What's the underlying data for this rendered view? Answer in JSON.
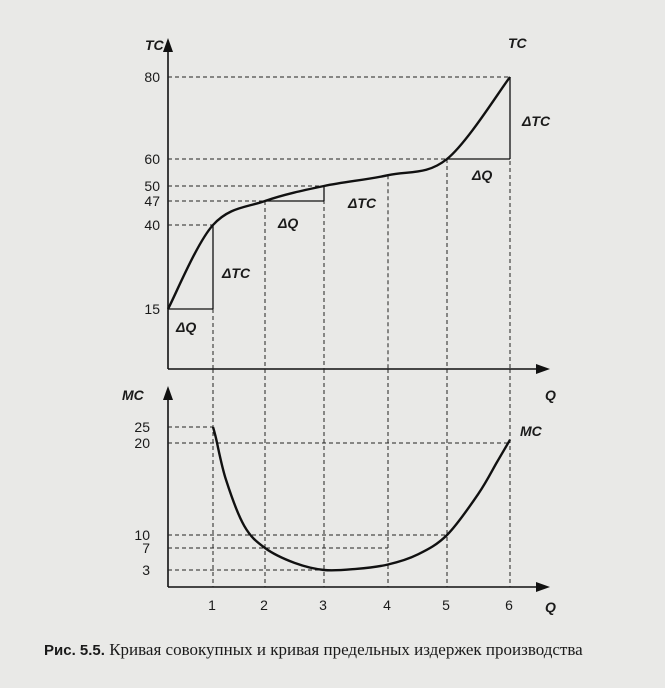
{
  "caption": {
    "label": "Рис. 5.5.",
    "text": "Кривая совокупных и кривая предельных издержек производства"
  },
  "chart_data": [
    {
      "type": "line",
      "xlabel": "Q",
      "ylabel": "TC",
      "curve_label": "TC",
      "yticks": [
        15,
        40,
        47,
        50,
        60,
        80
      ],
      "ylim": [
        0,
        88
      ],
      "xlim": [
        0,
        6.6
      ],
      "guide_x": [
        1,
        2,
        3,
        4,
        5,
        6
      ],
      "x": [
        0,
        1,
        2,
        3,
        4,
        5,
        6
      ],
      "y": [
        15,
        40,
        47,
        50,
        54,
        60,
        80
      ],
      "annotations": [
        {
          "label": "ΔQ"
        },
        {
          "label": "ΔTC"
        },
        {
          "label": "ΔQ"
        },
        {
          "label": "ΔTC"
        },
        {
          "label": "ΔQ"
        },
        {
          "label": "ΔTC"
        }
      ]
    },
    {
      "type": "line",
      "xlabel": "Q",
      "ylabel": "MC",
      "curve_label": "MC",
      "categories": [
        "1",
        "2",
        "3",
        "4",
        "5",
        "6"
      ],
      "yticks": [
        3,
        7,
        10,
        20,
        25
      ],
      "ylim": [
        0,
        30
      ],
      "xlim": [
        0,
        6.6
      ],
      "x": [
        1,
        2,
        3,
        4,
        5,
        6
      ],
      "y": [
        25,
        7,
        3,
        4,
        10,
        20
      ]
    }
  ]
}
